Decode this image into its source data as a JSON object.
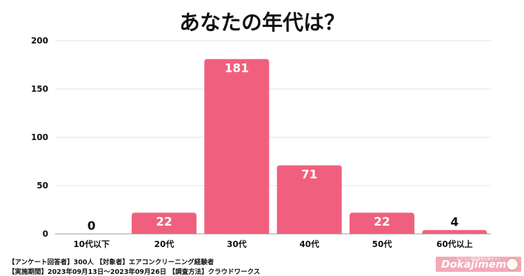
{
  "title": "あなたの年代は？",
  "chart_data": {
    "type": "bar",
    "title": "あなたの年代は？",
    "categories": [
      "10代以下",
      "20代",
      "30代",
      "40代",
      "50代",
      "60代以上"
    ],
    "values": [
      0,
      22,
      181,
      71,
      22,
      4
    ],
    "ylim": [
      0,
      200
    ],
    "yticks": [
      0,
      50,
      100,
      150,
      200
    ],
    "grid": true,
    "bar_color": "#f0607e"
  },
  "footer": {
    "line1": "【アンケート回答者】300人 【対象者】エアコンクリーニング経験者",
    "line2": "【実施期間】2023年09月13日～2023年09月26日 【調査方法】クラウドワークス"
  },
  "logo": {
    "brand": "Dokajimemo",
    "tagline": "エアコン掃除業者比較サイト",
    "icon": "sheep-mascot-icon"
  }
}
